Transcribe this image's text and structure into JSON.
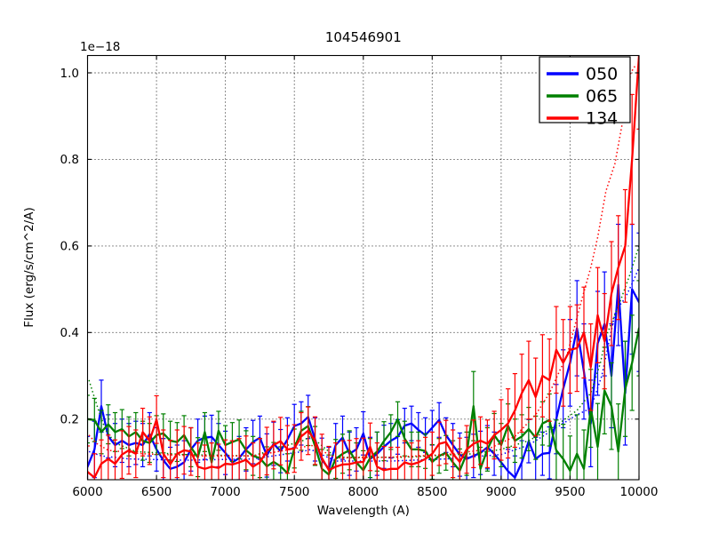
{
  "chart_data": {
    "type": "line",
    "title": "104546901",
    "xlabel": "Wavelength (A)",
    "ylabel": "Flux (erg/s/cm^2/A)",
    "y_scale_label": "1e−18",
    "xlim": [
      6000,
      10000
    ],
    "ylim": [
      0.06,
      1.04
    ],
    "xticks": [
      6000,
      6500,
      7000,
      7500,
      8000,
      8500,
      9000,
      9500,
      10000
    ],
    "xtick_labels": [
      "6000",
      "6500",
      "7000",
      "7500",
      "8000",
      "8500",
      "9000",
      "9500",
      "10000"
    ],
    "yticks": [
      0.2,
      0.4,
      0.6,
      0.8,
      1.0
    ],
    "ytick_labels": [
      "0.2",
      "0.4",
      "0.6",
      "0.8",
      "1.0"
    ],
    "grid": true,
    "grid_style": "dotted",
    "legend_position": "upper right",
    "wavelengths": [
      6000,
      6050,
      6100,
      6150,
      6200,
      6250,
      6300,
      6350,
      6400,
      6450,
      6500,
      6550,
      6600,
      6650,
      6700,
      6750,
      6800,
      6850,
      6900,
      6950,
      7000,
      7050,
      7100,
      7150,
      7200,
      7250,
      7300,
      7350,
      7400,
      7450,
      7500,
      7550,
      7600,
      7650,
      7700,
      7750,
      7800,
      7850,
      7900,
      7950,
      8000,
      8050,
      8100,
      8150,
      8200,
      8250,
      8300,
      8350,
      8400,
      8450,
      8500,
      8550,
      8600,
      8650,
      8700,
      8750,
      8800,
      8850,
      8900,
      8950,
      9000,
      9050,
      9100,
      9150,
      9200,
      9250,
      9300,
      9350,
      9400,
      9450,
      9500,
      9550,
      9600,
      9650,
      9700,
      9750,
      9800,
      9850,
      9900,
      9950,
      10000
    ],
    "series": [
      {
        "name": "050",
        "color": "#0000ff",
        "flux": [
          0.09,
          0.13,
          0.23,
          0.16,
          0.14,
          0.15,
          0.14,
          0.145,
          0.14,
          0.165,
          0.13,
          0.105,
          0.085,
          0.09,
          0.1,
          0.13,
          0.15,
          0.157,
          0.159,
          0.14,
          0.122,
          0.1,
          0.11,
          0.13,
          0.147,
          0.157,
          0.116,
          0.143,
          0.126,
          0.153,
          0.184,
          0.19,
          0.205,
          0.153,
          0.106,
          0.085,
          0.14,
          0.157,
          0.12,
          0.13,
          0.167,
          0.108,
          0.12,
          0.136,
          0.15,
          0.159,
          0.185,
          0.19,
          0.175,
          0.163,
          0.18,
          0.198,
          0.163,
          0.14,
          0.118,
          0.108,
          0.115,
          0.122,
          0.135,
          0.12,
          0.1,
          0.08,
          0.065,
          0.1,
          0.149,
          0.108,
          0.12,
          0.122,
          0.2,
          0.27,
          0.33,
          0.41,
          0.31,
          0.19,
          0.375,
          0.42,
          0.3,
          0.51,
          0.26,
          0.5,
          0.47
        ],
        "err": [
          0.07,
          0.065,
          0.06,
          0.05,
          0.05,
          0.05,
          0.05,
          0.05,
          0.05,
          0.05,
          0.05,
          0.05,
          0.05,
          0.05,
          0.05,
          0.05,
          0.05,
          0.05,
          0.05,
          0.05,
          0.05,
          0.05,
          0.05,
          0.05,
          0.05,
          0.05,
          0.05,
          0.05,
          0.05,
          0.05,
          0.05,
          0.05,
          0.05,
          0.05,
          0.05,
          0.05,
          0.05,
          0.05,
          0.05,
          0.05,
          0.05,
          0.05,
          0.05,
          0.05,
          0.04,
          0.04,
          0.04,
          0.04,
          0.04,
          0.04,
          0.04,
          0.04,
          0.04,
          0.05,
          0.05,
          0.05,
          0.05,
          0.05,
          0.05,
          0.05,
          0.05,
          0.05,
          0.05,
          0.05,
          0.05,
          0.05,
          0.05,
          0.06,
          0.08,
          0.09,
          0.1,
          0.11,
          0.11,
          0.1,
          0.12,
          0.12,
          0.12,
          0.14,
          0.12,
          0.15,
          0.16
        ],
        "dotted": {
          "x": [
            6010,
            6100,
            6300,
            6700,
            7200,
            7560,
            7620,
            7800,
            8200,
            8600,
            9000,
            9200,
            9400,
            9550,
            9650,
            9730,
            9830,
            9900,
            9960,
            10000
          ],
          "y": [
            0.125,
            0.115,
            0.108,
            0.105,
            0.108,
            0.125,
            0.13,
            0.103,
            0.103,
            0.108,
            0.118,
            0.14,
            0.18,
            0.21,
            0.225,
            0.3,
            0.45,
            0.48,
            0.52,
            0.55
          ]
        }
      },
      {
        "name": "065",
        "color": "#008000",
        "flux": [
          0.2,
          0.198,
          0.17,
          0.188,
          0.17,
          0.177,
          0.16,
          0.17,
          0.15,
          0.145,
          0.163,
          0.167,
          0.15,
          0.147,
          0.163,
          0.135,
          0.112,
          0.17,
          0.1,
          0.173,
          0.14,
          0.147,
          0.153,
          0.128,
          0.115,
          0.11,
          0.091,
          0.101,
          0.091,
          0.075,
          0.132,
          0.173,
          0.184,
          0.138,
          0.085,
          0.072,
          0.108,
          0.12,
          0.128,
          0.1,
          0.082,
          0.11,
          0.125,
          0.149,
          0.17,
          0.2,
          0.155,
          0.13,
          0.13,
          0.126,
          0.101,
          0.115,
          0.122,
          0.1,
          0.081,
          0.12,
          0.23,
          0.085,
          0.13,
          0.163,
          0.14,
          0.185,
          0.15,
          0.16,
          0.177,
          0.157,
          0.19,
          0.198,
          0.128,
          0.108,
          0.081,
          0.12,
          0.085,
          0.225,
          0.136,
          0.266,
          0.23,
          0.125,
          0.27,
          0.33,
          0.41
        ],
        "err": [
          0.055,
          0.05,
          0.05,
          0.045,
          0.045,
          0.045,
          0.045,
          0.045,
          0.045,
          0.045,
          0.045,
          0.045,
          0.045,
          0.045,
          0.045,
          0.045,
          0.045,
          0.045,
          0.045,
          0.045,
          0.045,
          0.045,
          0.045,
          0.045,
          0.045,
          0.045,
          0.045,
          0.045,
          0.045,
          0.045,
          0.045,
          0.045,
          0.045,
          0.045,
          0.045,
          0.045,
          0.045,
          0.045,
          0.045,
          0.045,
          0.045,
          0.045,
          0.045,
          0.045,
          0.04,
          0.04,
          0.04,
          0.04,
          0.04,
          0.04,
          0.04,
          0.04,
          0.04,
          0.05,
          0.05,
          0.05,
          0.08,
          0.05,
          0.05,
          0.05,
          0.05,
          0.05,
          0.05,
          0.05,
          0.05,
          0.05,
          0.05,
          0.06,
          0.07,
          0.08,
          0.08,
          0.09,
          0.09,
          0.09,
          0.1,
          0.1,
          0.1,
          0.11,
          0.11,
          0.11,
          0.11
        ],
        "dotted": {
          "x": [
            6010,
            6040,
            6080,
            6130,
            6200,
            6350,
            6700,
            7200,
            7560,
            7620,
            7800,
            8300,
            8800,
            9000,
            9200,
            9400,
            9550,
            9650,
            9720,
            9760,
            9850,
            9930,
            10000
          ],
          "y": [
            0.29,
            0.26,
            0.22,
            0.175,
            0.145,
            0.125,
            0.118,
            0.115,
            0.15,
            0.16,
            0.112,
            0.112,
            0.12,
            0.13,
            0.15,
            0.185,
            0.22,
            0.26,
            0.33,
            0.39,
            0.46,
            0.53,
            0.6
          ]
        }
      },
      {
        "name": "134",
        "color": "#ff0000",
        "flux": [
          0.078,
          0.065,
          0.097,
          0.108,
          0.097,
          0.118,
          0.128,
          0.12,
          0.17,
          0.15,
          0.199,
          0.12,
          0.096,
          0.12,
          0.128,
          0.125,
          0.09,
          0.085,
          0.09,
          0.087,
          0.097,
          0.095,
          0.1,
          0.106,
          0.09,
          0.1,
          0.126,
          0.14,
          0.149,
          0.13,
          0.132,
          0.16,
          0.173,
          0.15,
          0.11,
          0.082,
          0.09,
          0.095,
          0.096,
          0.1,
          0.101,
          0.136,
          0.09,
          0.082,
          0.085,
          0.085,
          0.1,
          0.095,
          0.1,
          0.108,
          0.12,
          0.143,
          0.147,
          0.12,
          0.101,
          0.13,
          0.143,
          0.15,
          0.143,
          0.163,
          0.175,
          0.19,
          0.22,
          0.26,
          0.29,
          0.251,
          0.3,
          0.29,
          0.36,
          0.33,
          0.36,
          0.364,
          0.4,
          0.32,
          0.44,
          0.38,
          0.49,
          0.55,
          0.6,
          0.8,
          1.04
        ],
        "err": [
          0.06,
          0.055,
          0.055,
          0.055,
          0.055,
          0.055,
          0.055,
          0.055,
          0.055,
          0.055,
          0.055,
          0.055,
          0.055,
          0.055,
          0.055,
          0.055,
          0.055,
          0.055,
          0.055,
          0.055,
          0.055,
          0.055,
          0.055,
          0.055,
          0.055,
          0.055,
          0.055,
          0.055,
          0.055,
          0.055,
          0.055,
          0.055,
          0.055,
          0.055,
          0.055,
          0.055,
          0.055,
          0.055,
          0.055,
          0.055,
          0.055,
          0.055,
          0.055,
          0.055,
          0.05,
          0.05,
          0.05,
          0.05,
          0.05,
          0.05,
          0.05,
          0.05,
          0.05,
          0.055,
          0.055,
          0.055,
          0.055,
          0.055,
          0.055,
          0.055,
          0.07,
          0.08,
          0.085,
          0.09,
          0.09,
          0.09,
          0.095,
          0.095,
          0.1,
          0.1,
          0.1,
          0.1,
          0.105,
          0.1,
          0.11,
          0.11,
          0.12,
          0.12,
          0.13,
          0.15,
          0.17
        ],
        "dotted": {
          "x": [
            6010,
            6060,
            6150,
            6400,
            6800,
            7200,
            7560,
            7620,
            7800,
            8200,
            8600,
            8900,
            9100,
            9250,
            9350,
            9480,
            9580,
            9650,
            9700,
            9760,
            9825,
            9877,
            9910,
            9940,
            9980
          ],
          "y": [
            0.163,
            0.145,
            0.128,
            0.12,
            0.115,
            0.115,
            0.135,
            0.14,
            0.11,
            0.112,
            0.118,
            0.13,
            0.16,
            0.21,
            0.26,
            0.35,
            0.47,
            0.55,
            0.62,
            0.727,
            0.79,
            0.88,
            0.94,
            1.0,
            1.02
          ]
        }
      }
    ]
  }
}
